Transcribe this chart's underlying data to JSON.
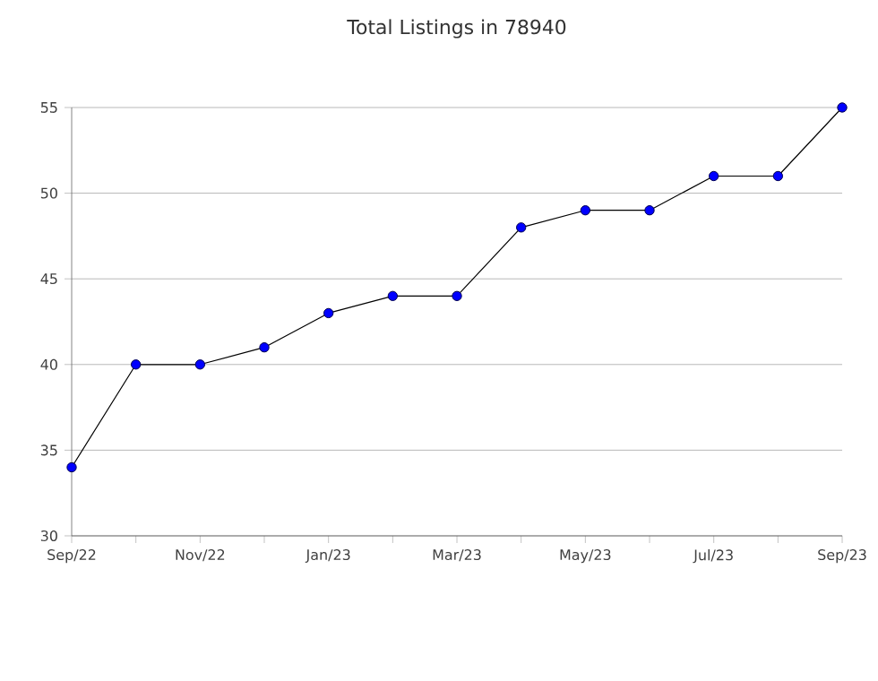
{
  "chart_data": {
    "type": "line",
    "title": "Total Listings in 78940",
    "categories": [
      "Sep/22",
      null,
      "Nov/22",
      null,
      "Jan/23",
      null,
      "Mar/23",
      null,
      "May/23",
      null,
      "Jul/23",
      null,
      "Sep/23"
    ],
    "series": [
      {
        "color": "#0000ff",
        "values": [
          34,
          40,
          40,
          41,
          43,
          44,
          44,
          48,
          49,
          49,
          51,
          51,
          55
        ]
      }
    ],
    "ylim": [
      30,
      55
    ],
    "yticks": [
      30,
      35,
      40,
      45,
      50,
      55
    ],
    "grid": "y",
    "marker": "circle",
    "line_style": "solid"
  }
}
